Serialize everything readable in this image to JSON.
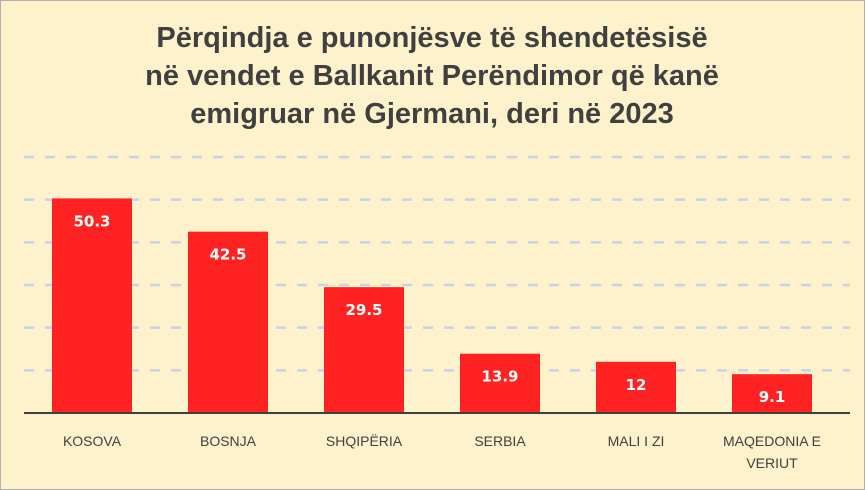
{
  "chart_data": {
    "type": "bar",
    "title_lines": [
      "Përqindja e punonjësve të shendetësisë",
      "në vendet e Ballkanit Perëndimor që kanë",
      "emigruar në Gjermani, deri në 2023"
    ],
    "categories": [
      [
        "KOSOVA"
      ],
      [
        "BOSNJA"
      ],
      [
        "SHQIPËRIA"
      ],
      [
        "SERBIA"
      ],
      [
        "MALI I ZI"
      ],
      [
        "MAQEDONIA E",
        "VERIUT"
      ]
    ],
    "values": [
      50.3,
      42.5,
      29.5,
      13.9,
      12,
      9.1
    ],
    "value_labels": [
      "50.3",
      "42.5",
      "29.5",
      "13.9",
      "12",
      "9.1"
    ],
    "xlabel": "",
    "ylabel": "",
    "ylim": [
      0,
      60
    ],
    "ytick_step": 10,
    "y_axis_labels_shown": false,
    "grid": "dashed horizontal",
    "legend": "none",
    "colors": {
      "background": "#FEF2CC",
      "bar": "#FF2222",
      "grid": "#C9D3E6",
      "text": "#404040"
    }
  }
}
